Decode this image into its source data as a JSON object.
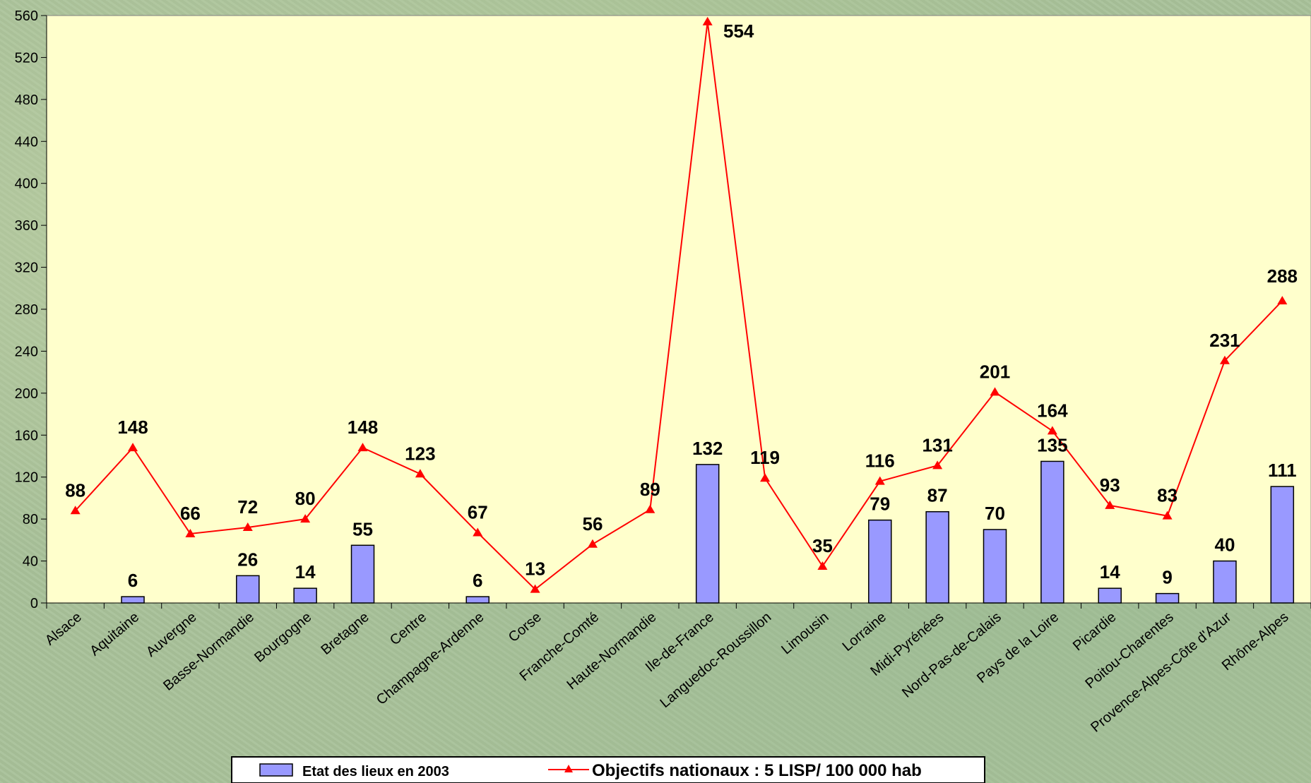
{
  "chart_data": {
    "type": "bar",
    "categories": [
      "Alsace",
      "Aquitaine",
      "Auvergne",
      "Basse-Normandie",
      "Bourgogne",
      "Bretagne",
      "Centre",
      "Champagne-Ardenne",
      "Corse",
      "Franche-Comté",
      "Haute-Normandie",
      "Ile-de-France",
      "Languedoc-Roussillon",
      "Limousin",
      "Lorraine",
      "Midi-Pyrénées",
      "Nord-Pas-de-Calais",
      "Pays de la Loire",
      "Picardie",
      "Poitou-Charentes",
      "Provence-Alpes-Côte d'Azur",
      "Rhône-Alpes"
    ],
    "series": [
      {
        "name": "Etat des lieux en 2003",
        "type": "bar",
        "color": "#9999ff",
        "values": [
          null,
          6,
          null,
          26,
          14,
          55,
          null,
          6,
          null,
          null,
          null,
          132,
          null,
          null,
          79,
          87,
          70,
          135,
          14,
          9,
          40,
          111
        ]
      },
      {
        "name": "Objectifs nationaux : 5 LISP/ 100 000 hab",
        "type": "line",
        "color": "#ff0000",
        "marker": "triangle",
        "values": [
          88,
          148,
          66,
          72,
          80,
          148,
          123,
          67,
          13,
          56,
          89,
          554,
          119,
          35,
          116,
          131,
          201,
          164,
          93,
          83,
          231,
          288
        ]
      }
    ],
    "ylim": [
      0,
      560
    ],
    "yticks": [
      0,
      40,
      80,
      120,
      160,
      200,
      240,
      280,
      320,
      360,
      400,
      440,
      480,
      520,
      560
    ],
    "xlabel": "",
    "ylabel": "",
    "title": "",
    "grid": false,
    "legend_position": "bottom",
    "plot_background": "#ffffcc"
  }
}
